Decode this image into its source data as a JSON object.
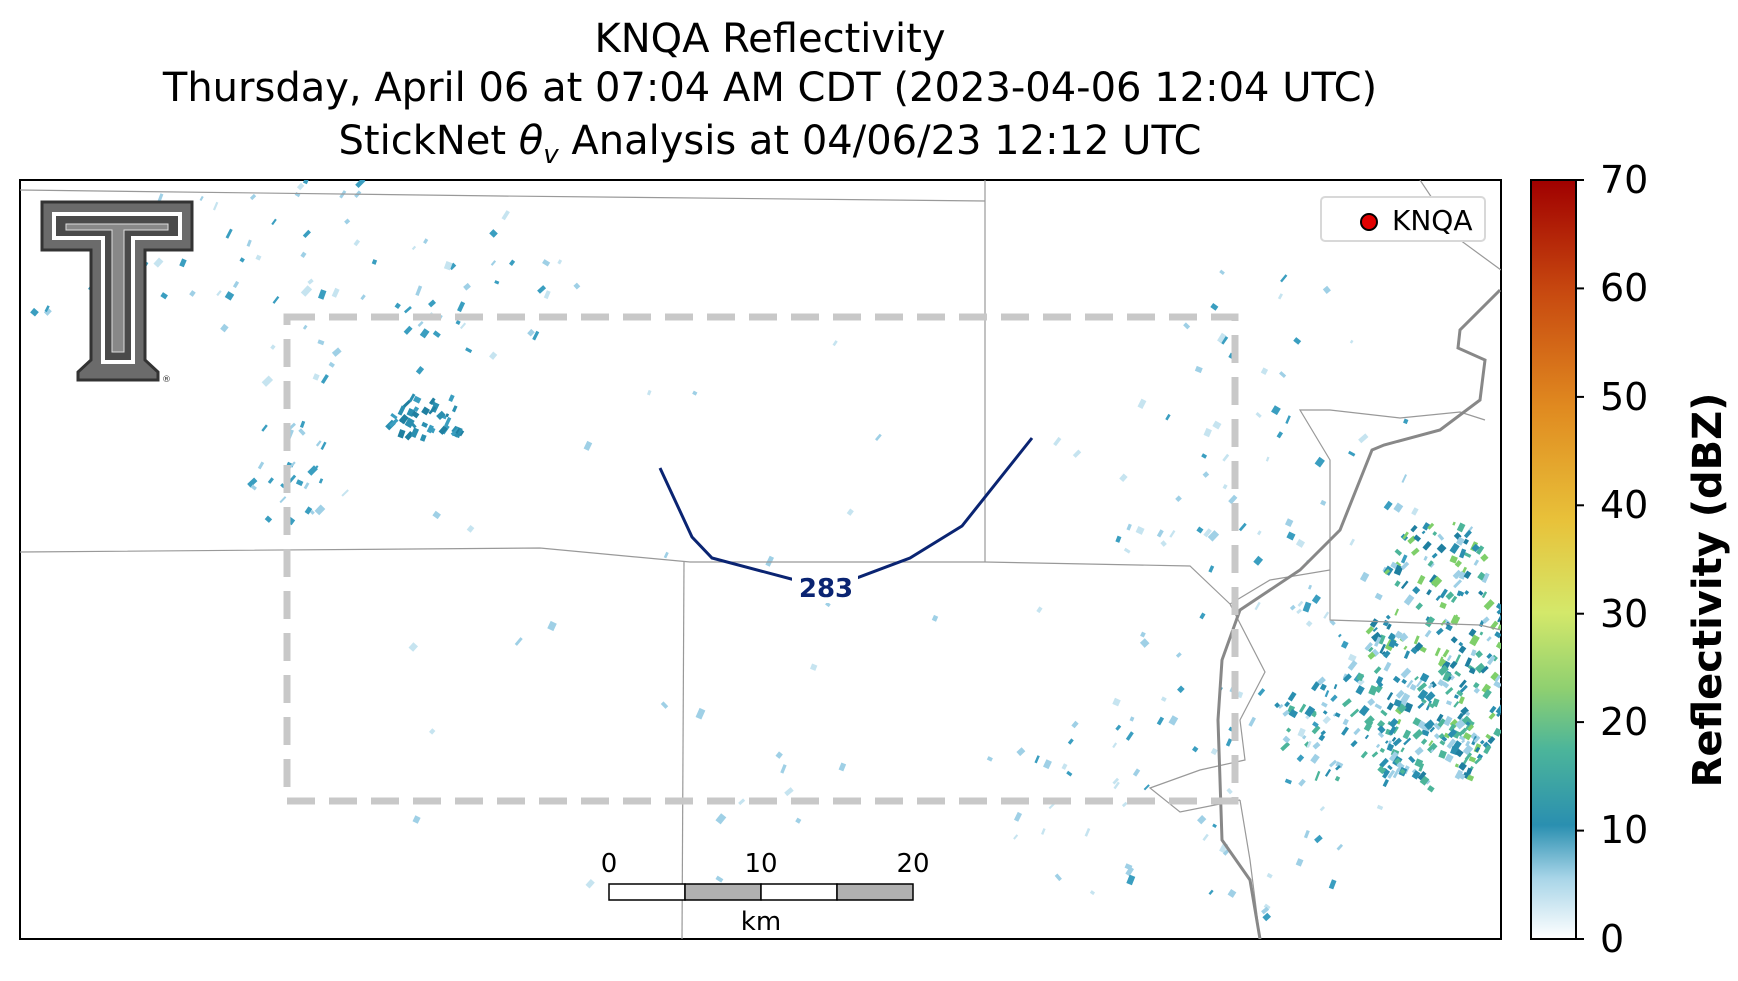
{
  "title": {
    "line1": "KNQA Reflectivity",
    "line2": "Thursday, April 06 at 07:04 AM CDT (2023-04-06 12:04 UTC)",
    "line3": "StickNet θv Analysis at 04/06/23 12:12 UTC"
  },
  "legend": {
    "label": "KNQA",
    "marker_color": "#e00000"
  },
  "contour": {
    "label": "283",
    "color": "#0a2472"
  },
  "colorbar": {
    "label": "Reflectivity (dBZ)",
    "ticks": [
      "0",
      "10",
      "20",
      "30",
      "40",
      "50",
      "60",
      "70"
    ],
    "range": [
      0,
      70
    ],
    "colors": [
      "#ffffff",
      "#a8d5e8",
      "#2a8fb0",
      "#4cb59a",
      "#7fcf6a",
      "#d4e86a",
      "#e8c23a",
      "#e08a20",
      "#c84a10",
      "#a00000"
    ]
  },
  "scale_bar": {
    "ticks": [
      "0",
      "10",
      "20"
    ],
    "unit": "km"
  },
  "colors": {
    "domain_box": "#c8c8c8",
    "boundary": "#888888",
    "echo": "#3a9ec0"
  }
}
